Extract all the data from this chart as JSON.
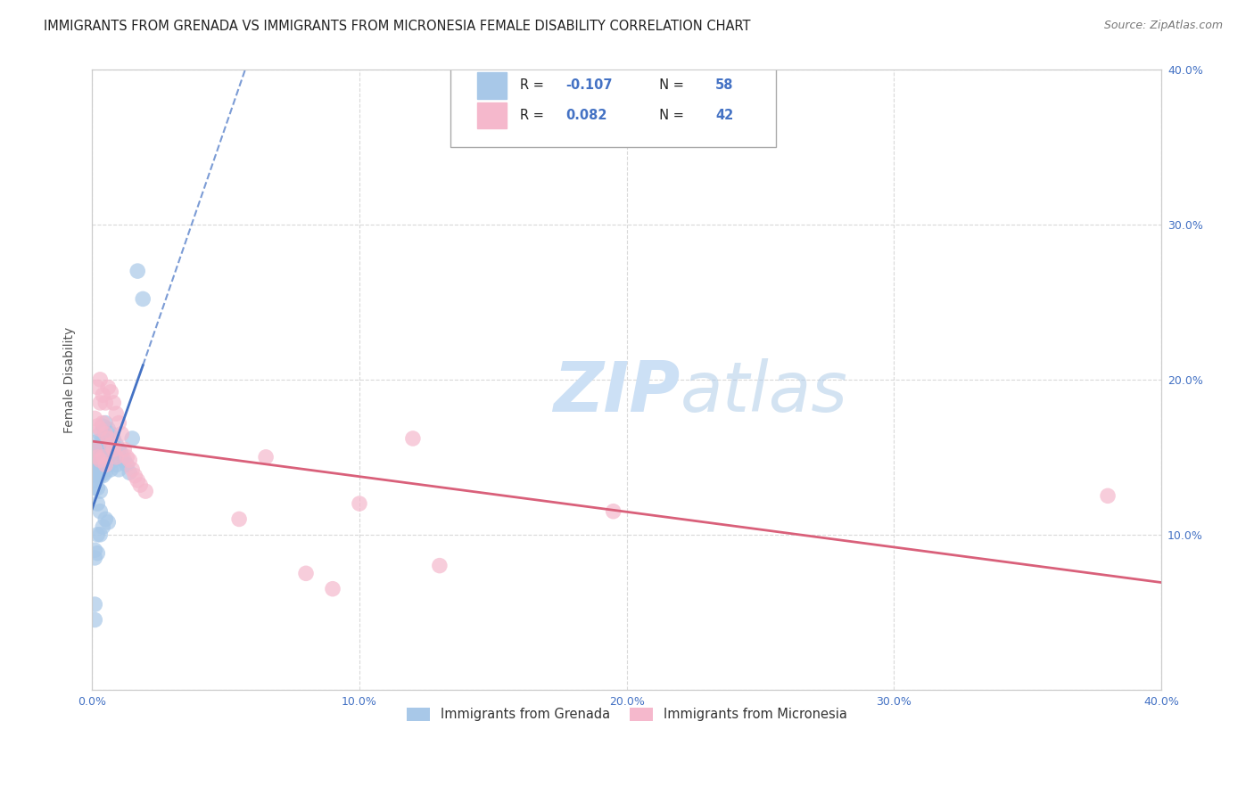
{
  "title": "IMMIGRANTS FROM GRENADA VS IMMIGRANTS FROM MICRONESIA FEMALE DISABILITY CORRELATION CHART",
  "source": "Source: ZipAtlas.com",
  "ylabel": "Female Disability",
  "xlim": [
    0.0,
    0.4
  ],
  "ylim": [
    0.0,
    0.4
  ],
  "xticks": [
    0.0,
    0.1,
    0.2,
    0.3,
    0.4
  ],
  "yticks": [
    0.0,
    0.1,
    0.2,
    0.3,
    0.4
  ],
  "xtick_labels": [
    "0.0%",
    "10.0%",
    "20.0%",
    "30.0%",
    "40.0%"
  ],
  "right_ytick_labels": [
    "",
    "10.0%",
    "20.0%",
    "30.0%",
    "40.0%"
  ],
  "grenada_color": "#a8c8e8",
  "micronesia_color": "#f5b8cc",
  "grenada_R": -0.107,
  "grenada_N": 58,
  "micronesia_R": 0.082,
  "micronesia_N": 42,
  "legend_label_grenada": "Immigrants from Grenada",
  "legend_label_micronesia": "Immigrants from Micronesia",
  "grenada_line_color": "#4472c4",
  "micronesia_line_color": "#d9607a",
  "background_color": "#ffffff",
  "grid_color": "#d0d0d0",
  "watermark_color": "#cce0f5",
  "title_fontsize": 10.5,
  "axis_tick_fontsize": 9,
  "grenada_pts_x": [
    0.001,
    0.001,
    0.001,
    0.001,
    0.001,
    0.001,
    0.001,
    0.001,
    0.001,
    0.001,
    0.002,
    0.002,
    0.002,
    0.002,
    0.002,
    0.002,
    0.002,
    0.002,
    0.002,
    0.003,
    0.003,
    0.003,
    0.003,
    0.003,
    0.003,
    0.003,
    0.003,
    0.004,
    0.004,
    0.004,
    0.004,
    0.004,
    0.004,
    0.005,
    0.005,
    0.005,
    0.005,
    0.005,
    0.006,
    0.006,
    0.006,
    0.006,
    0.007,
    0.007,
    0.007,
    0.008,
    0.008,
    0.009,
    0.009,
    0.01,
    0.01,
    0.011,
    0.012,
    0.013,
    0.014,
    0.015,
    0.017,
    0.019
  ],
  "grenada_pts_y": [
    0.155,
    0.15,
    0.145,
    0.14,
    0.135,
    0.13,
    0.09,
    0.085,
    0.055,
    0.045,
    0.16,
    0.155,
    0.148,
    0.143,
    0.138,
    0.13,
    0.12,
    0.1,
    0.088,
    0.165,
    0.158,
    0.15,
    0.145,
    0.138,
    0.128,
    0.115,
    0.1,
    0.17,
    0.162,
    0.155,
    0.145,
    0.138,
    0.105,
    0.172,
    0.16,
    0.15,
    0.14,
    0.11,
    0.168,
    0.155,
    0.145,
    0.108,
    0.165,
    0.152,
    0.142,
    0.162,
    0.148,
    0.158,
    0.145,
    0.155,
    0.142,
    0.152,
    0.148,
    0.145,
    0.14,
    0.162,
    0.27,
    0.252
  ],
  "micronesia_pts_x": [
    0.001,
    0.001,
    0.002,
    0.002,
    0.002,
    0.003,
    0.003,
    0.003,
    0.003,
    0.004,
    0.004,
    0.004,
    0.005,
    0.005,
    0.005,
    0.006,
    0.006,
    0.007,
    0.007,
    0.008,
    0.008,
    0.009,
    0.009,
    0.01,
    0.011,
    0.012,
    0.013,
    0.014,
    0.015,
    0.016,
    0.017,
    0.018,
    0.02,
    0.055,
    0.065,
    0.08,
    0.09,
    0.1,
    0.12,
    0.13,
    0.195,
    0.38
  ],
  "micronesia_pts_y": [
    0.175,
    0.155,
    0.195,
    0.17,
    0.15,
    0.2,
    0.185,
    0.168,
    0.148,
    0.19,
    0.172,
    0.15,
    0.185,
    0.165,
    0.145,
    0.195,
    0.162,
    0.192,
    0.158,
    0.185,
    0.155,
    0.178,
    0.15,
    0.172,
    0.165,
    0.155,
    0.15,
    0.148,
    0.142,
    0.138,
    0.135,
    0.132,
    0.128,
    0.11,
    0.15,
    0.075,
    0.065,
    0.12,
    0.162,
    0.08,
    0.115,
    0.125
  ]
}
